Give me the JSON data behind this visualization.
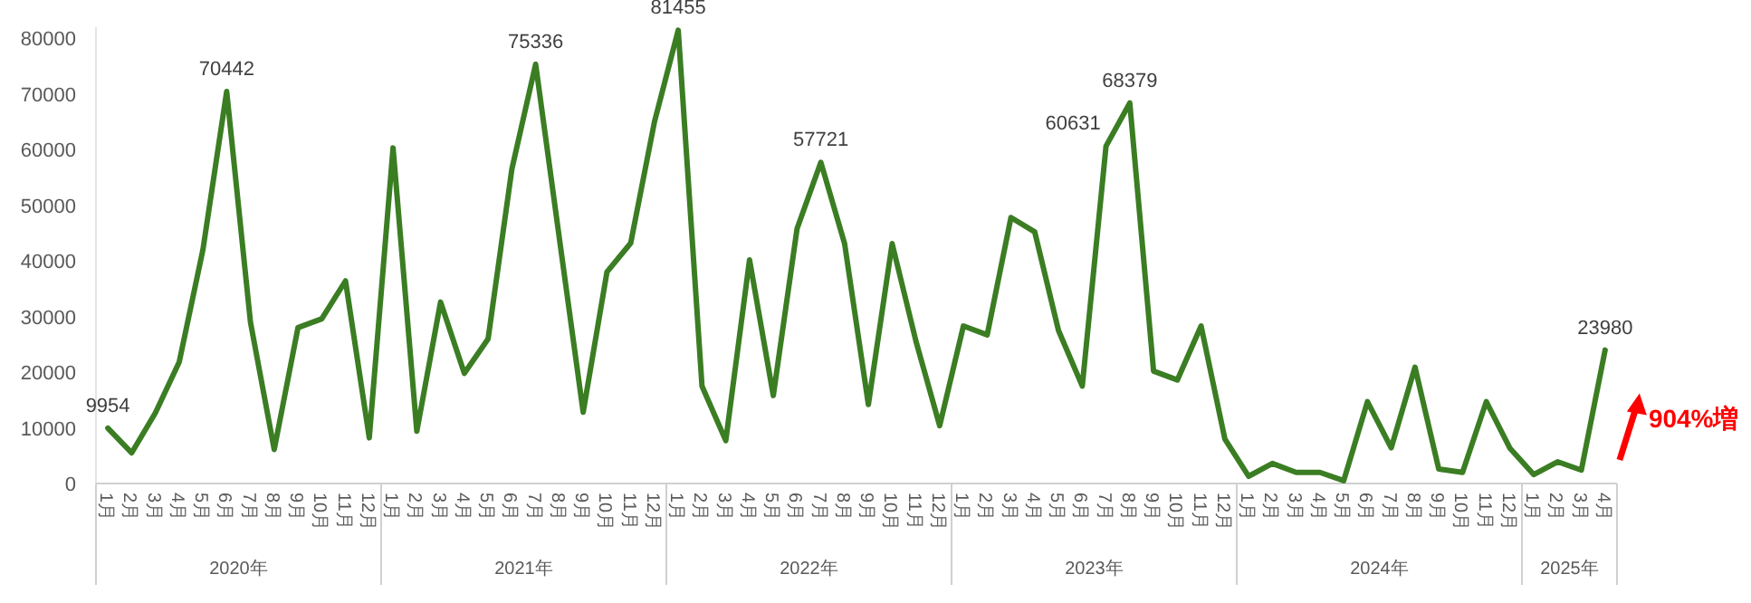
{
  "chart_data": {
    "type": "line",
    "color": "#3b7d23",
    "categories": [
      "1月",
      "2月",
      "3月",
      "4月",
      "5月",
      "6月",
      "7月",
      "8月",
      "9月",
      "10月",
      "11月",
      "12月",
      "1月",
      "2月",
      "3月",
      "4月",
      "5月",
      "6月",
      "7月",
      "8月",
      "9月",
      "10月",
      "11月",
      "12月",
      "1月",
      "2月",
      "3月",
      "4月",
      "5月",
      "6月",
      "7月",
      "8月",
      "9月",
      "10月",
      "11月",
      "12月",
      "1月",
      "2月",
      "3月",
      "4月",
      "5月",
      "6月",
      "7月",
      "8月",
      "9月",
      "10月",
      "11月",
      "12月",
      "1月",
      "2月",
      "3月",
      "4月",
      "5月",
      "6月",
      "7月",
      "8月",
      "9月",
      "10月",
      "11月",
      "12月",
      "1月",
      "2月",
      "3月",
      "4月"
    ],
    "values": [
      9954,
      5500,
      12700,
      21800,
      42000,
      70442,
      29000,
      6100,
      28000,
      29600,
      36400,
      8200,
      60300,
      9400,
      32600,
      19800,
      26000,
      56500,
      75336,
      44000,
      12800,
      38000,
      43200,
      65000,
      81455,
      17500,
      7700,
      40200,
      15800,
      45800,
      57721,
      43100,
      14200,
      43100,
      25600,
      10400,
      28300,
      26700,
      47800,
      45200,
      27500,
      17500,
      60631,
      68379,
      20200,
      18600,
      28300,
      8000,
      1300,
      3600,
      2000,
      2000,
      500,
      14700,
      6400,
      20900,
      2600,
      2000,
      14700,
      6300,
      1600,
      3900,
      2400,
      23980
    ],
    "value_labels": [
      "9954",
      null,
      null,
      null,
      null,
      "70442",
      null,
      null,
      null,
      null,
      null,
      null,
      null,
      null,
      null,
      null,
      null,
      null,
      "75336",
      null,
      null,
      null,
      null,
      null,
      "81455",
      null,
      null,
      null,
      null,
      null,
      "57721",
      null,
      null,
      null,
      null,
      null,
      null,
      null,
      null,
      null,
      null,
      null,
      "60631",
      "68379",
      null,
      null,
      null,
      null,
      null,
      null,
      null,
      null,
      null,
      null,
      null,
      null,
      null,
      null,
      null,
      null,
      null,
      null,
      null,
      "23980"
    ],
    "ylim": [
      0,
      82000
    ],
    "yticks": [
      0,
      10000,
      20000,
      30000,
      40000,
      50000,
      60000,
      70000,
      80000
    ],
    "annotations": [
      "2020年",
      "2021年",
      "2022年",
      "2023年",
      "2024年",
      "2025年",
      "904%増"
    ]
  }
}
